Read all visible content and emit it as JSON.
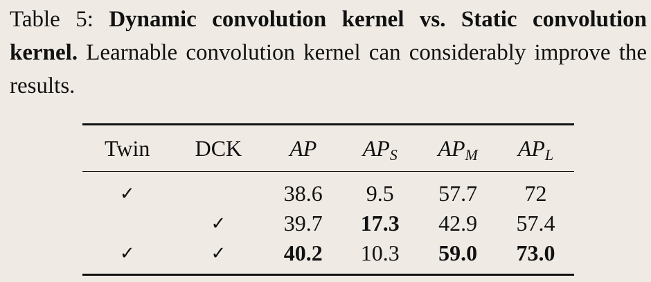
{
  "caption": {
    "label": "Table 5:",
    "title": "Dynamic convolution kernel vs. Static convolution kernel.",
    "text": "Learnable convolution kernel can considerably improve the results."
  },
  "table": {
    "headers": [
      "Twin",
      "DCK",
      "AP",
      "AP_S",
      "AP_M",
      "AP_L"
    ],
    "header_display": {
      "twin": "Twin",
      "dck": "DCK",
      "ap": "AP",
      "aps_base": "AP",
      "aps_sub": "S",
      "apm_base": "AP",
      "apm_sub": "M",
      "apl_base": "AP",
      "apl_sub": "L"
    },
    "rows": [
      {
        "twin": "✓",
        "dck": "",
        "ap": "38.6",
        "aps": "9.5",
        "apm": "57.7",
        "apl": "72"
      },
      {
        "twin": "",
        "dck": "✓",
        "ap": "39.7",
        "aps": "17.3",
        "apm": "42.9",
        "apl": "57.4"
      },
      {
        "twin": "✓",
        "dck": "✓",
        "ap": "40.2",
        "aps": "10.3",
        "apm": "59.0",
        "apl": "73.0"
      }
    ],
    "bold_cells": [
      "rows.1.aps",
      "rows.2.ap",
      "rows.2.apm",
      "rows.2.apl"
    ]
  }
}
